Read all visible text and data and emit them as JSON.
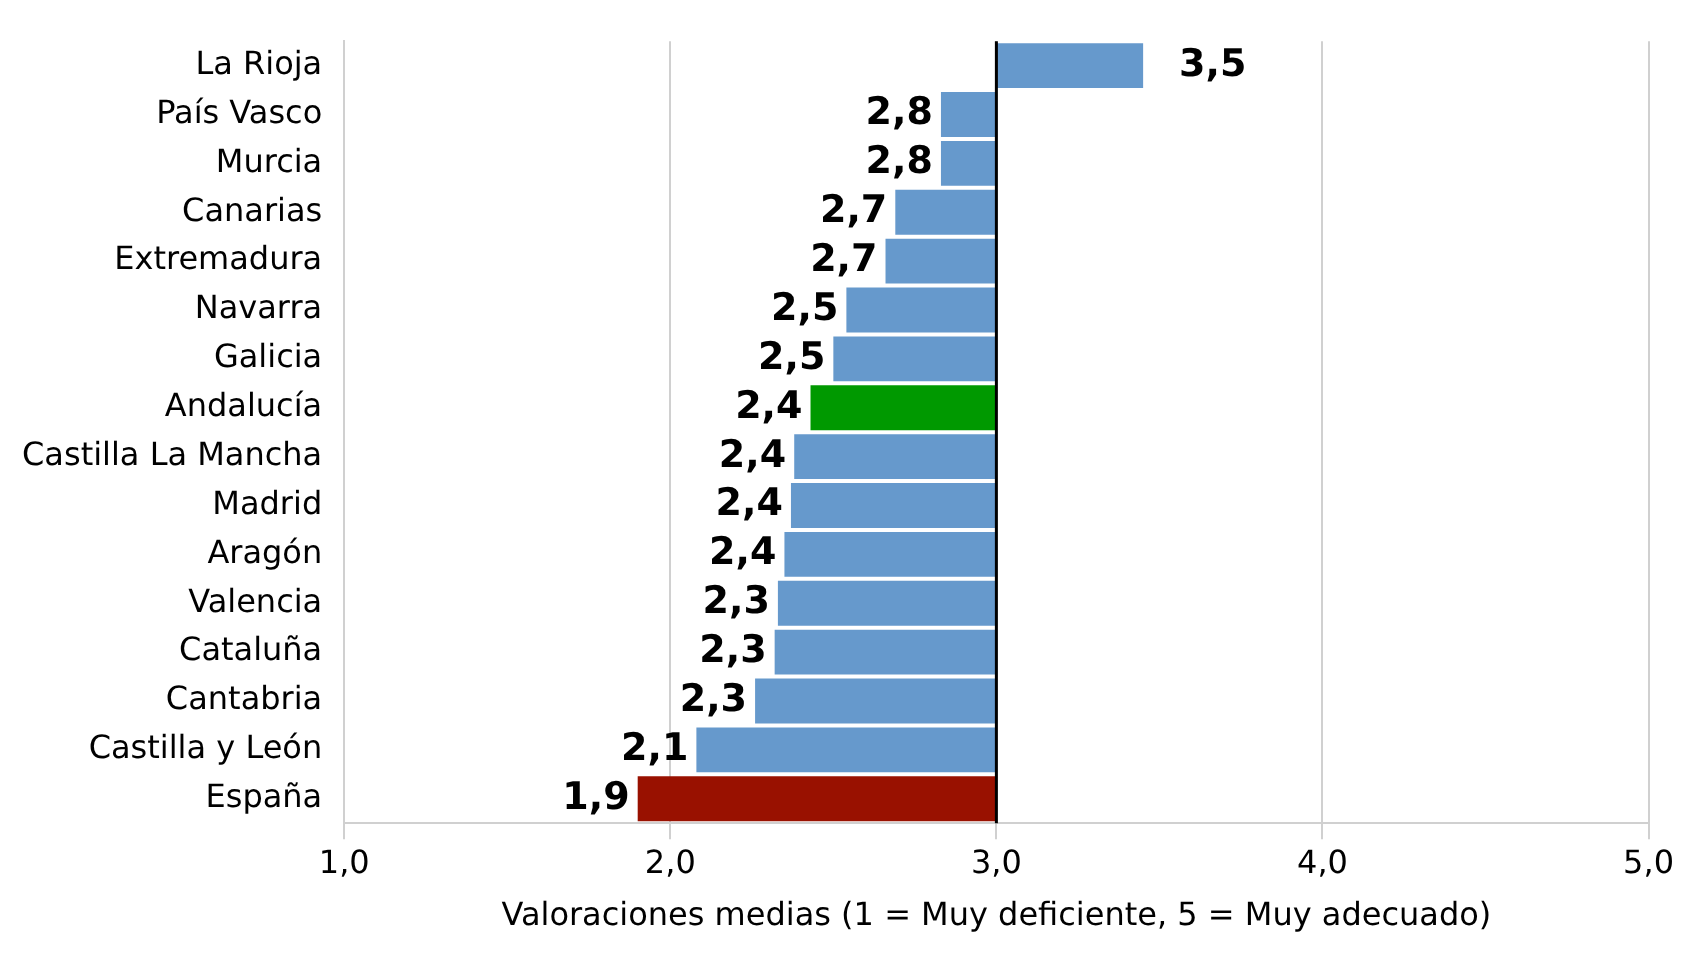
{
  "chart_data": {
    "type": "bar",
    "orientation": "horizontal",
    "xlabel": "Valoraciones medias (1 = Muy deficiente, 5 = Muy adecuado)",
    "categories": [
      "La Rioja",
      "País Vasco",
      "Murcia",
      "Canarias",
      "Extremadura",
      "Navarra",
      "Galicia",
      "Andalucía",
      "Castilla La Mancha",
      "Madrid",
      "Aragón",
      "Valencia",
      "Cataluña",
      "Cantabria",
      "Castilla y León",
      "España"
    ],
    "base": [
      3,
      3,
      3,
      3,
      3,
      3,
      3,
      3,
      3,
      3,
      3,
      3,
      3,
      3,
      3,
      3
    ],
    "values": [
      0.45,
      -0.17,
      -0.17,
      -0.31,
      -0.34,
      -0.46,
      -0.5,
      -0.57,
      -0.62,
      -0.63,
      -0.65,
      -0.67,
      -0.68,
      -0.74,
      -0.92,
      -1.1
    ],
    "value_labels": [
      "3,5",
      "2,8",
      "2,8",
      "2,7",
      "2,7",
      "2,5",
      "2,5",
      "2,4",
      "2,4",
      "2,4",
      "2,4",
      "2,3",
      "2,3",
      "2,3",
      "2,1",
      "1,9"
    ],
    "colors": [
      "#6699cc",
      "#6699cc",
      "#6699cc",
      "#6699cc",
      "#6699cc",
      "#6699cc",
      "#6699cc",
      "#009900",
      "#6699cc",
      "#6699cc",
      "#6699cc",
      "#6699cc",
      "#6699cc",
      "#6699cc",
      "#6699cc",
      "#991100"
    ],
    "xlim": [
      1,
      5
    ],
    "xticks": [
      {
        "value": 1,
        "label": "1,0"
      },
      {
        "value": 2,
        "label": "2,0"
      },
      {
        "value": 3,
        "label": "3,0"
      },
      {
        "value": 4,
        "label": "4,0"
      },
      {
        "value": 5,
        "label": "5,0"
      }
    ],
    "ref_lines": [
      {
        "axis": "x",
        "value": 3,
        "color": "#000000"
      }
    ],
    "grid": "x",
    "legend": false
  }
}
